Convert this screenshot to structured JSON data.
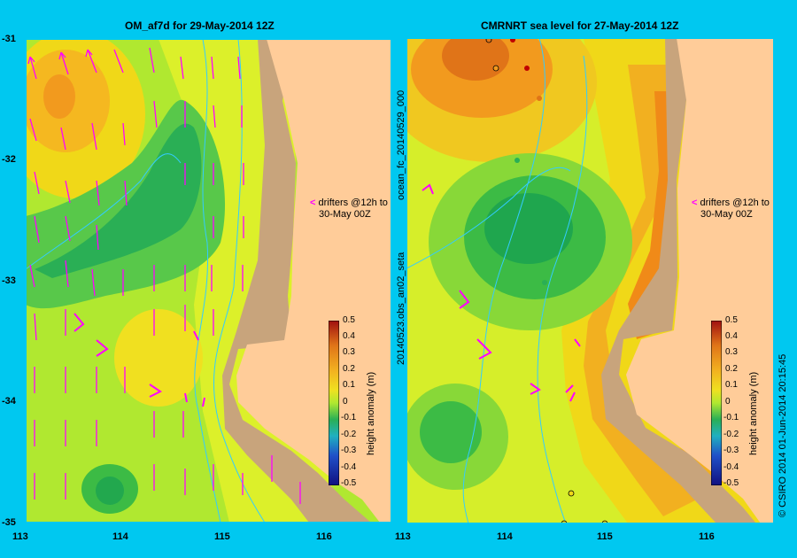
{
  "panels": [
    {
      "title": "OM_af7d for 29-May-2014 12Z",
      "note_line1": "drifters @12h to",
      "note_line2": "30-May 00Z",
      "colorbar_label": "height anomaly (m)"
    },
    {
      "title": "CMRNRT sea level  for 27-May-2014 12Z",
      "note_line1": "drifters @12h to",
      "note_line2": "30-May 00Z",
      "colorbar_label": "height anomaly (m)",
      "side_label_top": "ocean_fc_20140529_000",
      "side_label_bottom": "20140523.obs_an02_seta"
    }
  ],
  "lat_ticks": [
    "-31",
    "-32",
    "-33",
    "-34",
    "-35"
  ],
  "lon_ticks": [
    "113",
    "114",
    "115",
    "116"
  ],
  "colorbar_ticks": [
    "0.5",
    "0.4",
    "0.3",
    "0.2",
    "0.1",
    "0",
    "-0.1",
    "-0.2",
    "-0.3",
    "-0.4",
    "-0.5"
  ],
  "credit": "© CSIRO 2014    01-Jun-2014 20:15:45",
  "colors": {
    "background": "#00c8f0",
    "land": "#ffcc99",
    "shelf": "#c8a47c",
    "vector": "#ff00ff",
    "isobath": "#33ccff"
  }
}
